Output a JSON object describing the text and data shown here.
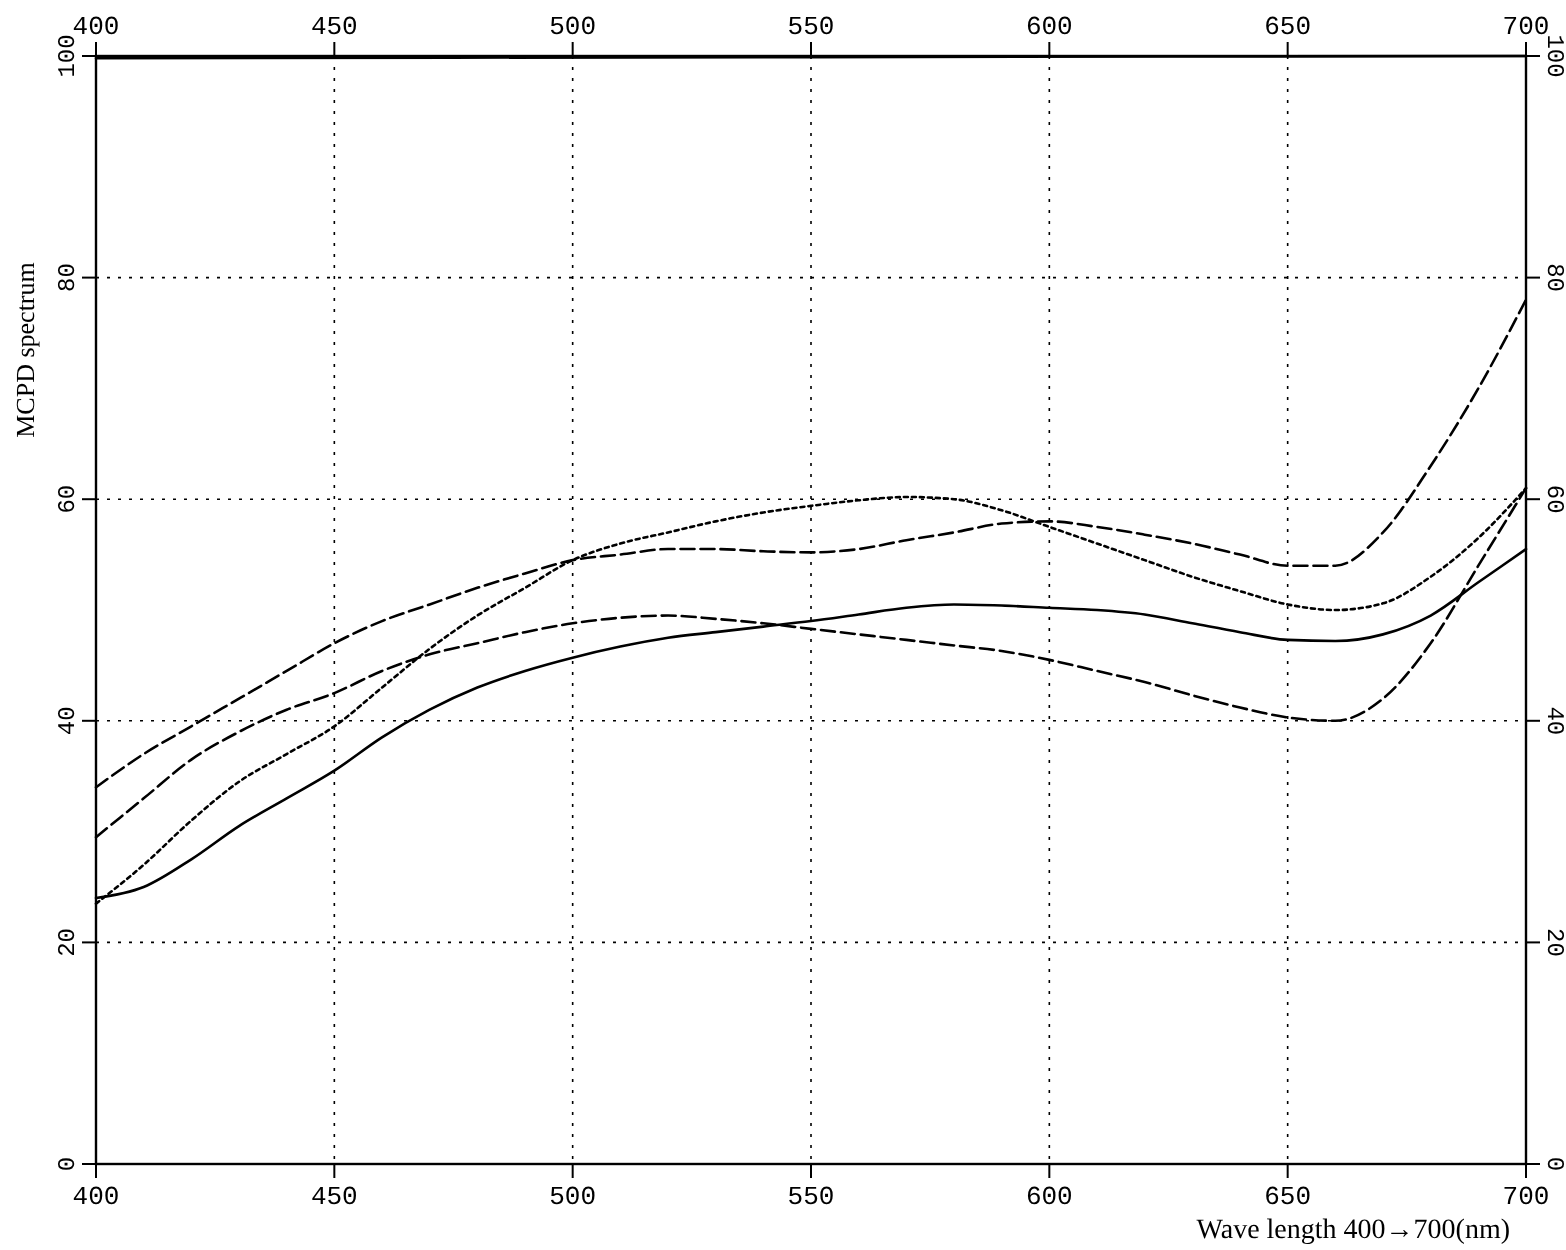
{
  "chart_data": {
    "type": "line",
    "xlabel": "Wave length 400→700(nm)",
    "ylabel": "MCPD spectrum",
    "xlim": [
      400,
      700
    ],
    "xticks": [
      400,
      450,
      500,
      550,
      600,
      650,
      700
    ],
    "ylim": [
      0,
      100
    ],
    "yticks": [
      0,
      20,
      40,
      60,
      80,
      100
    ],
    "x2lim": [
      400,
      700
    ],
    "x2ticks": [
      400,
      450,
      500,
      550,
      600,
      650,
      700
    ],
    "y2lim": [
      0,
      100
    ],
    "y2ticks": [
      0,
      20,
      40,
      60,
      80,
      100
    ],
    "grid": true,
    "x": [
      400,
      410,
      420,
      430,
      440,
      450,
      460,
      470,
      480,
      490,
      500,
      510,
      520,
      530,
      540,
      550,
      560,
      570,
      580,
      590,
      600,
      610,
      620,
      630,
      640,
      650,
      660,
      670,
      680,
      690,
      700
    ],
    "series": [
      {
        "color": "#000000",
        "line_style": "solid",
        "x": [
          400,
          550,
          700
        ],
        "values": [
          99.8,
          99.9,
          100
        ]
      },
      {
        "color": "#000000",
        "line_style": "dashed",
        "values": [
          34,
          37,
          39.5,
          42,
          44.5,
          47,
          49,
          50.5,
          52,
          53.3,
          54.5,
          55,
          55.5,
          55.5,
          55.3,
          55.2,
          55.5,
          56.3,
          57,
          57.8,
          58,
          57.5,
          56.8,
          56,
          55,
          54,
          54,
          57,
          63,
          70,
          78
        ]
      },
      {
        "color": "#000000",
        "line_style": "dashed",
        "values": [
          29.5,
          33,
          36.5,
          39,
          41,
          42.5,
          44.5,
          46,
          47,
          48,
          48.8,
          49.3,
          49.5,
          49.2,
          48.8,
          48.3,
          47.8,
          47.3,
          46.8,
          46.3,
          45.5,
          44.5,
          43.5,
          42.3,
          41.2,
          40.3,
          40,
          42,
          47,
          54,
          61
        ]
      },
      {
        "color": "#000000",
        "line_style": "dotted",
        "values": [
          23.5,
          27,
          31,
          34.5,
          37,
          39.5,
          43,
          46.5,
          49.5,
          52,
          54.5,
          56,
          57,
          58,
          58.8,
          59.4,
          59.9,
          60.2,
          60,
          59,
          57.5,
          56,
          54.5,
          53,
          51.7,
          50.5,
          50,
          50.6,
          53,
          56.5,
          61
        ]
      },
      {
        "color": "#000000",
        "line_style": "solid",
        "values": [
          24,
          25,
          27.5,
          30.5,
          33,
          35.5,
          38.5,
          41,
          43,
          44.5,
          45.7,
          46.7,
          47.5,
          48,
          48.5,
          49,
          49.6,
          50.2,
          50.5,
          50.4,
          50.2,
          50,
          49.6,
          48.8,
          48,
          47.3,
          47.2,
          47.8,
          49.5,
          52.5,
          55.5
        ]
      }
    ]
  }
}
